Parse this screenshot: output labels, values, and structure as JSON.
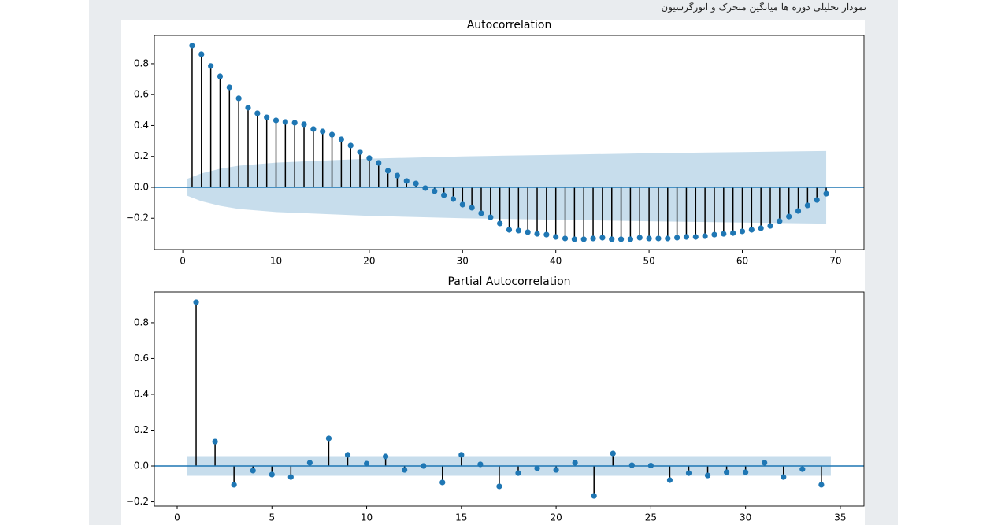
{
  "caption": "نمودار تحلیلی دوره ها میانگین متحرک و اتورگرسیون",
  "chart_data": [
    {
      "type": "stem",
      "title": "Autocorrelation",
      "color": "#1f77b4",
      "stem_color": "#000000",
      "x": [
        1,
        2,
        3,
        4,
        5,
        6,
        7,
        8,
        9,
        10,
        11,
        12,
        13,
        14,
        15,
        16,
        17,
        18,
        19,
        20,
        21,
        22,
        23,
        24,
        25,
        26,
        27,
        28,
        29,
        30,
        31,
        32,
        33,
        34,
        35,
        36,
        37,
        38,
        39,
        40,
        41,
        42,
        43,
        44,
        45,
        46,
        47,
        48,
        49,
        50,
        51,
        52,
        53,
        54,
        55,
        56,
        57,
        58,
        59,
        60,
        61,
        62,
        63,
        64,
        65,
        66,
        67,
        68,
        69
      ],
      "values": [
        0.917,
        0.861,
        0.785,
        0.718,
        0.647,
        0.576,
        0.515,
        0.479,
        0.453,
        0.433,
        0.423,
        0.418,
        0.408,
        0.377,
        0.362,
        0.341,
        0.311,
        0.27,
        0.229,
        0.189,
        0.158,
        0.107,
        0.076,
        0.041,
        0.025,
        -0.005,
        -0.025,
        -0.051,
        -0.076,
        -0.112,
        -0.132,
        -0.168,
        -0.194,
        -0.234,
        -0.275,
        -0.28,
        -0.29,
        -0.301,
        -0.306,
        -0.321,
        -0.331,
        -0.336,
        -0.336,
        -0.331,
        -0.326,
        -0.336,
        -0.336,
        -0.336,
        -0.326,
        -0.331,
        -0.331,
        -0.331,
        -0.326,
        -0.321,
        -0.321,
        -0.316,
        -0.306,
        -0.301,
        -0.296,
        -0.285,
        -0.275,
        -0.265,
        -0.25,
        -0.219,
        -0.189,
        -0.153,
        -0.117,
        -0.082,
        -0.041
      ],
      "band": {
        "x": [
          0.5,
          2,
          4,
          6,
          10,
          20,
          30,
          40,
          50,
          60,
          69
        ],
        "values": [
          0.055,
          0.09,
          0.12,
          0.14,
          0.16,
          0.185,
          0.2,
          0.21,
          0.22,
          0.228,
          0.235
        ]
      },
      "xlim": [
        -3.05,
        73.05
      ],
      "ylim": [
        -0.4025,
        0.983
      ],
      "xticks": [
        0,
        10,
        20,
        30,
        40,
        50,
        60,
        70
      ],
      "yticks": [
        {
          "value": -0.2,
          "label": "−0.2"
        },
        {
          "value": 0,
          "label": "0.0"
        },
        0.2,
        0.4,
        0.6,
        0.8
      ]
    },
    {
      "type": "stem",
      "title": "Partial Autocorrelation",
      "color": "#1f77b4",
      "stem_color": "#000000",
      "x": [
        1,
        2,
        3,
        4,
        5,
        6,
        7,
        8,
        9,
        10,
        11,
        12,
        13,
        14,
        15,
        16,
        17,
        18,
        19,
        20,
        21,
        22,
        23,
        24,
        25,
        26,
        27,
        28,
        29,
        30,
        31,
        32,
        33,
        34
      ],
      "values": [
        0.914,
        0.136,
        -0.105,
        -0.026,
        -0.048,
        -0.062,
        0.018,
        0.154,
        0.062,
        0.013,
        0.053,
        -0.022,
        0.0,
        -0.092,
        0.062,
        0.009,
        -0.114,
        -0.04,
        -0.013,
        -0.022,
        0.018,
        -0.167,
        0.07,
        0.004,
        0.002,
        -0.079,
        -0.04,
        -0.053,
        -0.035,
        -0.035,
        0.018,
        -0.062,
        -0.018,
        -0.105
      ],
      "band": {
        "x": [
          0.5,
          34.5
        ],
        "values": [
          0.055,
          0.055
        ]
      },
      "xlim": [
        -1.205,
        36.25
      ],
      "ylim": [
        -0.224,
        0.971
      ],
      "xticks": [
        0,
        5,
        10,
        15,
        20,
        25,
        30,
        35
      ],
      "yticks": [
        {
          "value": -0.2,
          "label": "−0.2"
        },
        {
          "value": 0,
          "label": "0.0"
        },
        0.2,
        0.4,
        0.6,
        0.8
      ]
    }
  ]
}
